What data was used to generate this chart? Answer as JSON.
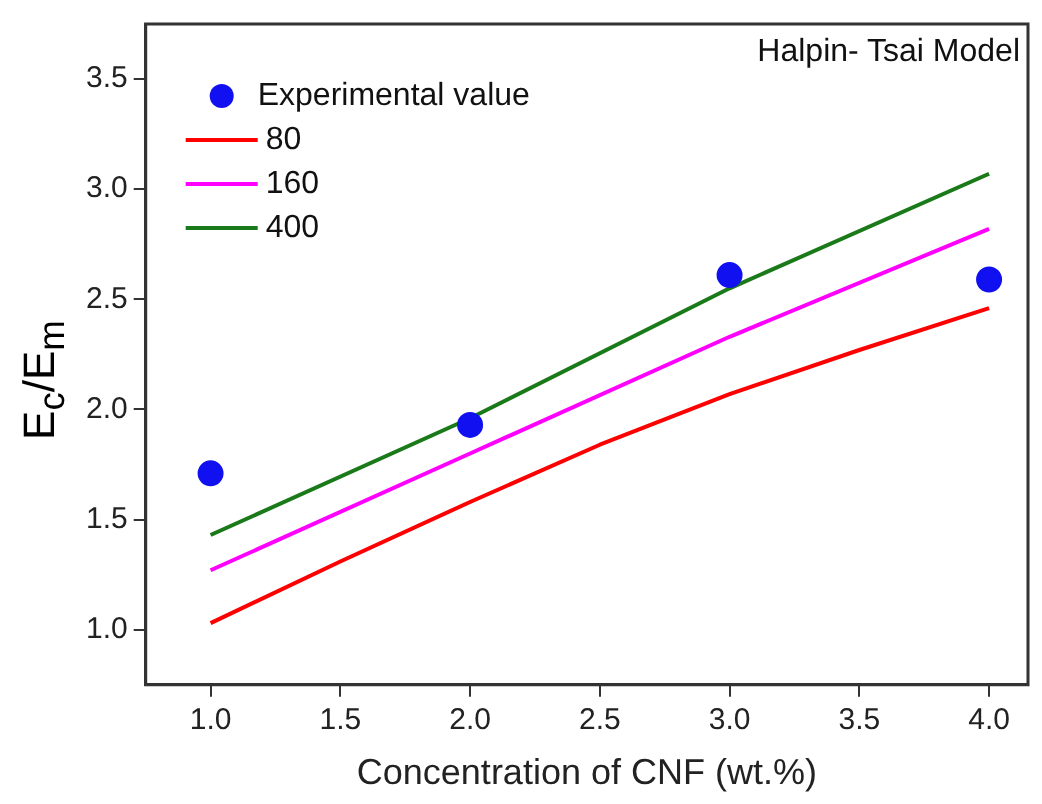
{
  "chart_data": {
    "type": "line",
    "xlabel": "Concentration of CNF (wt.%)",
    "ylabel": "E$_{c}$/E$_{m}$",
    "annotations": [
      "Halpin- Tsai Model"
    ],
    "xlim": [
      0.75,
      4.15
    ],
    "xticks": [
      {
        "value": 1,
        "label": "1.0"
      },
      {
        "value": 1.5,
        "label": "1.5"
      },
      {
        "value": 2,
        "label": "2.0"
      },
      {
        "value": 2.5,
        "label": "2.5"
      },
      {
        "value": 3,
        "label": "3.0"
      },
      {
        "value": 3.5,
        "label": "3.5"
      },
      {
        "value": 4,
        "label": "4.0"
      }
    ],
    "ylim": [
      0.75,
      3.75
    ],
    "yticks": [
      {
        "value": 1,
        "label": "1.0"
      },
      {
        "value": 1.5,
        "label": "1.5"
      },
      {
        "value": 2,
        "label": "2.0"
      },
      {
        "value": 2.5,
        "label": "2.5"
      },
      {
        "value": 3,
        "label": "3.0"
      },
      {
        "value": 3.5,
        "label": "3.5"
      }
    ],
    "grid": false,
    "legend": "top left",
    "series": [
      {
        "name": "Experimental value",
        "type": "scatter",
        "marker": "circle",
        "color": "#1010f0",
        "x": [
          1,
          2,
          3,
          4
        ],
        "values": [
          1.71,
          1.93,
          2.61,
          2.59
        ]
      },
      {
        "name": "80",
        "color": "#ff0000",
        "x": [
          1,
          1.5,
          2,
          2.5,
          3,
          3.5,
          4
        ],
        "values": [
          1.03,
          1.31,
          1.58,
          1.84,
          2.07,
          2.27,
          2.46
        ]
      },
      {
        "name": "160",
        "color": "#ff00ff",
        "x": [
          1,
          2,
          3,
          4
        ],
        "values": [
          1.27,
          1.8,
          2.33,
          2.82
        ]
      },
      {
        "name": "400",
        "color": "#1a7a1a",
        "x": [
          1,
          2,
          3,
          4
        ],
        "values": [
          1.43,
          1.96,
          2.55,
          3.07
        ]
      }
    ]
  }
}
